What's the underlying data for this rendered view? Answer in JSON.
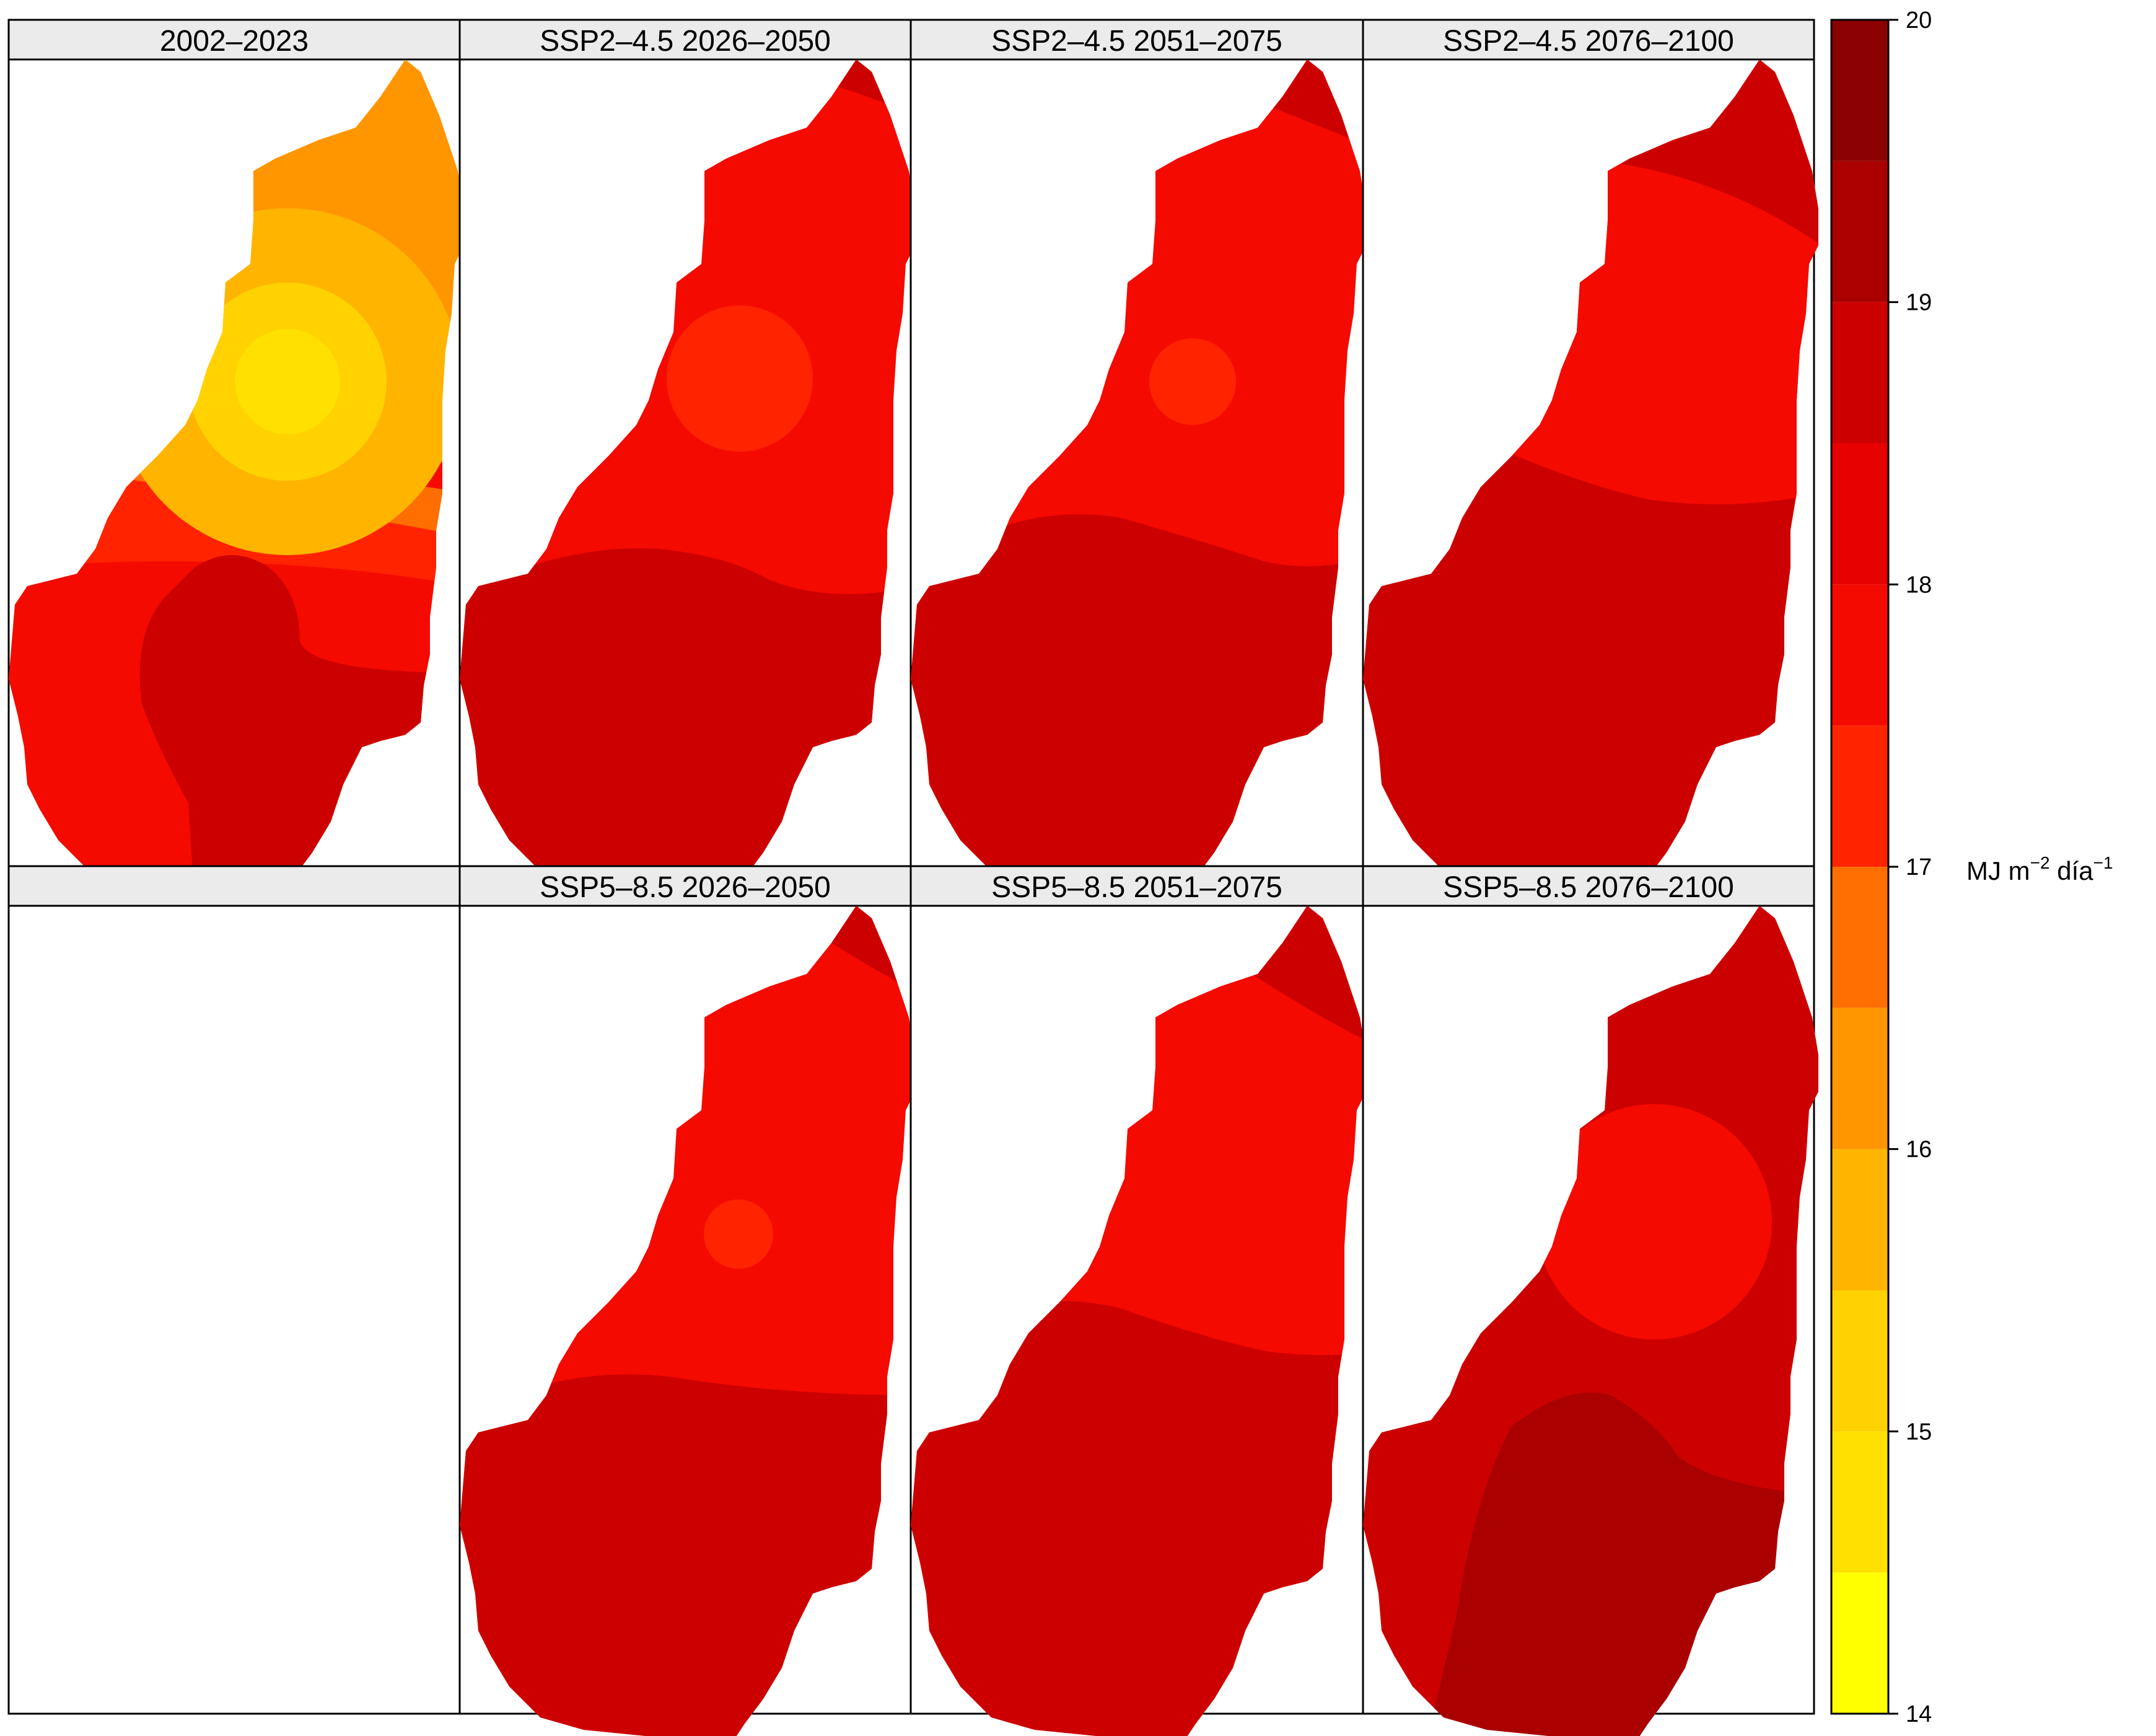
{
  "panels": [
    {
      "title": "2002–2023",
      "scenario": "base",
      "present": true
    },
    {
      "title": "SSP2–4.5 2026–2050",
      "scenario": "s245a",
      "present": true
    },
    {
      "title": "SSP2–4.5 2051–2075",
      "scenario": "s245b",
      "present": true
    },
    {
      "title": "SSP2–4.5 2076–2100",
      "scenario": "s245c",
      "present": true
    },
    {
      "title": "",
      "scenario": "empty",
      "present": false
    },
    {
      "title": "SSP5–8.5 2026–2050",
      "scenario": "s585a",
      "present": true
    },
    {
      "title": "SSP5–8.5 2051–2075",
      "scenario": "s585b",
      "present": true
    },
    {
      "title": "SSP5–8.5 2076–2100",
      "scenario": "s585c",
      "present": true
    }
  ],
  "legend": {
    "unit_main": "MJ m",
    "unit_exp1": "−2",
    "unit_mid": " día",
    "unit_exp2": "−1",
    "ticks": [
      "14",
      "15",
      "16",
      "17",
      "18",
      "19",
      "20"
    ],
    "tick_values": [
      14,
      15,
      16,
      17,
      18,
      19,
      20
    ],
    "range": [
      14,
      20
    ],
    "bins": [
      {
        "from": 14.0,
        "to": 14.5,
        "color": "#FFFF00"
      },
      {
        "from": 14.5,
        "to": 15.0,
        "color": "#FFE000"
      },
      {
        "from": 15.0,
        "to": 15.5,
        "color": "#FFD200"
      },
      {
        "from": 15.5,
        "to": 16.0,
        "color": "#FFB400"
      },
      {
        "from": 16.0,
        "to": 16.5,
        "color": "#FF9600"
      },
      {
        "from": 16.5,
        "to": 17.0,
        "color": "#FF6E00"
      },
      {
        "from": 17.0,
        "to": 17.5,
        "color": "#FF2300"
      },
      {
        "from": 17.5,
        "to": 18.0,
        "color": "#F50A00"
      },
      {
        "from": 18.0,
        "to": 18.5,
        "color": "#E60000"
      },
      {
        "from": 18.5,
        "to": 19.0,
        "color": "#CD0000"
      },
      {
        "from": 19.0,
        "to": 19.5,
        "color": "#AA0000"
      },
      {
        "from": 19.5,
        "to": 20.0,
        "color": "#8B0000"
      }
    ]
  }
}
